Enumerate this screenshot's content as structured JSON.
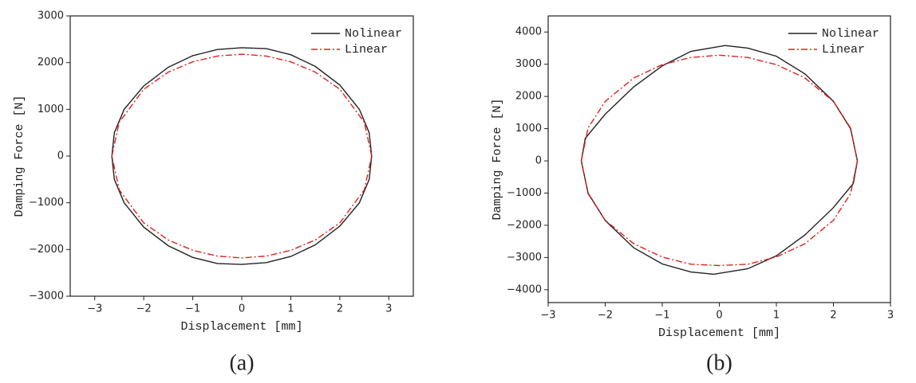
{
  "chart_data": [
    {
      "type": "line",
      "label": "(a)",
      "x_label": "Displacement [mm]",
      "y_label": "Damping Force [N]",
      "xlim": [
        -3.5,
        3.5
      ],
      "ylim": [
        -3000,
        3000
      ],
      "xticks": [
        {
          "value": -3,
          "label": "−3"
        },
        {
          "value": -2,
          "label": "−2"
        },
        {
          "value": -1,
          "label": "−1"
        },
        0,
        1,
        2,
        3
      ],
      "yticks": [
        {
          "value": -3000,
          "label": "−3000"
        },
        {
          "value": -2000,
          "label": "−2000"
        },
        {
          "value": -1000,
          "label": "−1000"
        },
        0,
        1000,
        2000,
        3000
      ],
      "legend": "upper right",
      "series": [
        {
          "name": "Nolinear",
          "color": "#222222",
          "dash": "solid",
          "x": [
            -2.65,
            -2.6,
            -2.4,
            -2,
            -1.5,
            -1,
            -0.5,
            0,
            0.5,
            1,
            1.5,
            2,
            2.4,
            2.6,
            2.65,
            2.6,
            2.4,
            2,
            1.5,
            1,
            0.5,
            0,
            -0.5,
            -1,
            -1.5,
            -2,
            -2.4,
            -2.6,
            -2.65
          ],
          "values": [
            0,
            500,
            1000,
            1500,
            1900,
            2150,
            2280,
            2320,
            2300,
            2170,
            1920,
            1520,
            1000,
            500,
            0,
            -500,
            -1000,
            -1500,
            -1900,
            -2150,
            -2280,
            -2320,
            -2300,
            -2170,
            -1920,
            -1520,
            -1000,
            -500,
            0
          ]
        },
        {
          "name": "Linear",
          "color": "#e0201c",
          "dash": "dashdot",
          "x": [
            -2.65,
            -2.5,
            -2,
            -1.5,
            -1,
            -0.5,
            0,
            0.5,
            1,
            1.5,
            2,
            2.5,
            2.65,
            2.5,
            2,
            1.5,
            1,
            0.5,
            0,
            -0.5,
            -1,
            -1.5,
            -2,
            -2.5,
            -2.65
          ],
          "values": [
            0,
            723,
            1430,
            1797,
            2019,
            2141,
            2180,
            2141,
            2019,
            1797,
            1430,
            723,
            0,
            -723,
            -1430,
            -1797,
            -2019,
            -2141,
            -2180,
            -2141,
            -2019,
            -1797,
            -1430,
            -723,
            0
          ]
        }
      ]
    },
    {
      "type": "line",
      "label": "(b)",
      "x_label": "Displacement [mm]",
      "y_label": "Damping Force [N]",
      "xlim": [
        -3,
        3
      ],
      "ylim": [
        -4400,
        4500
      ],
      "xticks": [
        {
          "value": -3,
          "label": "−3"
        },
        {
          "value": -2,
          "label": "−2"
        },
        {
          "value": -1,
          "label": "−1"
        },
        0,
        1,
        2,
        3
      ],
      "yticks": [
        {
          "value": -4000,
          "label": "−4000"
        },
        {
          "value": -3000,
          "label": "−3000"
        },
        {
          "value": -2000,
          "label": "−2000"
        },
        {
          "value": -1000,
          "label": "−1000"
        },
        0,
        1000,
        2000,
        3000,
        4000
      ],
      "legend": "upper right",
      "series": [
        {
          "name": "Nolinear",
          "color": "#222222",
          "dash": "solid",
          "x": [
            -2.42,
            -2.35,
            -2,
            -1.5,
            -1,
            -0.5,
            0.1,
            0.5,
            1,
            1.5,
            2,
            2.3,
            2.42,
            2.35,
            2,
            1.5,
            1,
            0.5,
            -0.1,
            -0.5,
            -1,
            -1.5,
            -2,
            -2.3,
            -2.42
          ],
          "values": [
            0,
            700,
            1450,
            2300,
            2950,
            3400,
            3580,
            3500,
            3250,
            2700,
            1850,
            1000,
            0,
            -700,
            -1450,
            -2300,
            -2950,
            -3350,
            -3520,
            -3450,
            -3200,
            -2700,
            -1850,
            -1000,
            0
          ]
        },
        {
          "name": "Linear",
          "color": "#e0201c",
          "dash": "dashdot",
          "x": [
            -2.42,
            -2.3,
            -2,
            -1.5,
            -1,
            -0.5,
            0,
            0.5,
            1,
            1.5,
            2,
            2.3,
            2.42,
            2.3,
            2,
            1.5,
            1,
            0.5,
            0,
            -0.5,
            -1,
            -1.5,
            -2,
            -2.3,
            -2.42
          ],
          "values": [
            0,
            1020,
            1847,
            2574,
            2986,
            3209,
            3280,
            3209,
            2986,
            2574,
            1847,
            1020,
            0,
            -1020,
            -1847,
            -2574,
            -2986,
            -3209,
            -3250,
            -3209,
            -2986,
            -2574,
            -1847,
            -1020,
            0
          ]
        }
      ]
    }
  ]
}
